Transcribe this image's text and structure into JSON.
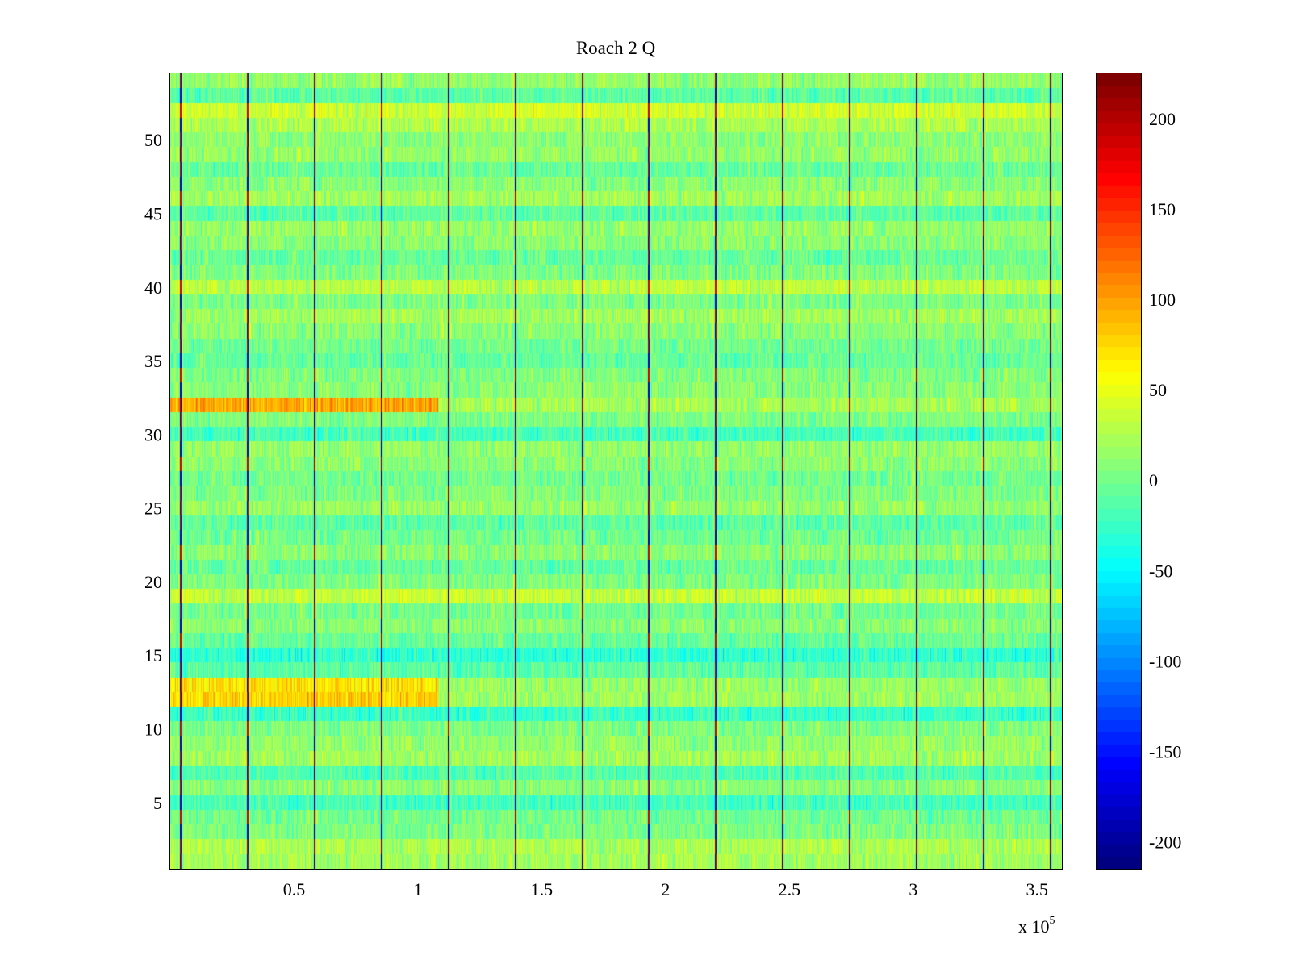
{
  "chart_data": {
    "type": "heatmap",
    "title": "Roach 2 Q",
    "xlabel": "",
    "ylabel": "",
    "x_range": [
      0,
      360000
    ],
    "y_range": [
      0.5,
      54.5
    ],
    "rows": 54,
    "x_multiplier_label": "x 10",
    "x_multiplier_exponent": "5",
    "x_ticks": [
      {
        "value": 0.5,
        "label": "0.5"
      },
      {
        "value": 1,
        "label": "1"
      },
      {
        "value": 1.5,
        "label": "1.5"
      },
      {
        "value": 2,
        "label": "2"
      },
      {
        "value": 2.5,
        "label": "2.5"
      },
      {
        "value": 3,
        "label": "3"
      },
      {
        "value": 3.5,
        "label": "3.5"
      }
    ],
    "y_ticks": [
      {
        "value": 5,
        "label": "5"
      },
      {
        "value": 10,
        "label": "10"
      },
      {
        "value": 15,
        "label": "15"
      },
      {
        "value": 20,
        "label": "20"
      },
      {
        "value": 25,
        "label": "25"
      },
      {
        "value": 30,
        "label": "30"
      },
      {
        "value": 35,
        "label": "35"
      },
      {
        "value": 40,
        "label": "40"
      },
      {
        "value": 45,
        "label": "45"
      },
      {
        "value": 50,
        "label": "50"
      }
    ],
    "colormap": "jet",
    "color_range": [
      -215,
      225
    ],
    "colorbar_ticks": [
      {
        "value": 200,
        "label": "200"
      },
      {
        "value": 150,
        "label": "150"
      },
      {
        "value": 100,
        "label": "100"
      },
      {
        "value": 50,
        "label": "50"
      },
      {
        "value": 0,
        "label": "0"
      },
      {
        "value": -50,
        "label": "-50"
      },
      {
        "value": -100,
        "label": "-100"
      },
      {
        "value": -150,
        "label": "-150"
      },
      {
        "value": -200,
        "label": "-200"
      }
    ],
    "row_means": [
      20,
      25,
      5,
      0,
      -20,
      10,
      -15,
      20,
      15,
      5,
      -25,
      60,
      55,
      -10,
      -30,
      -5,
      10,
      0,
      35,
      5,
      -5,
      10,
      0,
      -10,
      15,
      5,
      0,
      10,
      15,
      -20,
      5,
      75,
      10,
      5,
      -5,
      0,
      10,
      20,
      5,
      30,
      5,
      -5,
      10,
      15,
      -10,
      20,
      10,
      -5,
      15,
      10,
      25,
      40,
      -10,
      15
    ],
    "vertical_stripe_positions": [
      4000,
      31000,
      58000,
      85000,
      112000,
      139000,
      166000,
      193000,
      220000,
      247000,
      274000,
      301000,
      328000,
      355000
    ]
  }
}
